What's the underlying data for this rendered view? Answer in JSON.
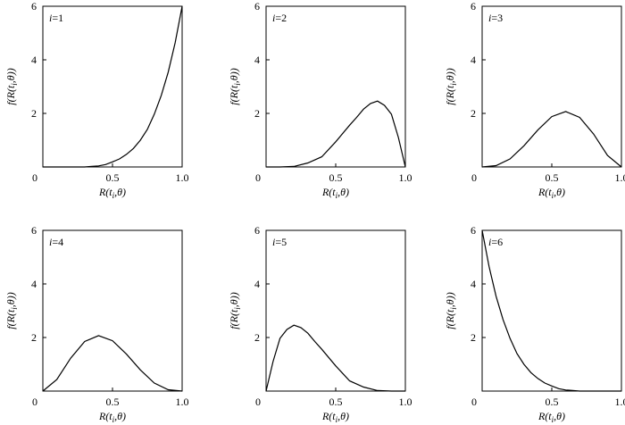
{
  "chart_data": [
    {
      "type": "line",
      "panel_label": "i=1",
      "xlabel": "R(t_i,θ)",
      "ylabel": "f(R(t_i,θ))",
      "xlim": [
        0,
        1
      ],
      "ylim": [
        0,
        6
      ],
      "x_ticks": [
        "0",
        "0.5",
        "1.0"
      ],
      "y_ticks": [
        "2",
        "4",
        "6"
      ],
      "x": [
        0,
        0.1,
        0.2,
        0.3,
        0.35,
        0.4,
        0.45,
        0.5,
        0.55,
        0.6,
        0.65,
        0.7,
        0.75,
        0.8,
        0.85,
        0.9,
        0.95,
        1.0
      ],
      "y": [
        0,
        0,
        0,
        0,
        0.02,
        0.04,
        0.09,
        0.19,
        0.3,
        0.47,
        0.69,
        1.0,
        1.4,
        1.97,
        2.67,
        3.54,
        4.64,
        6.0
      ]
    },
    {
      "type": "line",
      "panel_label": "i=2",
      "xlabel": "R(t_i,θ)",
      "ylabel": "f(R(t_i,θ))",
      "xlim": [
        0,
        1
      ],
      "ylim": [
        0,
        6
      ],
      "x_ticks": [
        "0",
        "0.5",
        "1.0"
      ],
      "y_ticks": [
        "2",
        "4",
        "6"
      ],
      "x": [
        0,
        0.1,
        0.2,
        0.3,
        0.4,
        0.5,
        0.6,
        0.65,
        0.7,
        0.75,
        0.8,
        0.85,
        0.9,
        0.95,
        1.0
      ],
      "y": [
        0,
        0,
        0.02,
        0.15,
        0.38,
        0.94,
        1.56,
        1.85,
        2.16,
        2.37,
        2.46,
        2.3,
        1.97,
        1.1,
        0
      ]
    },
    {
      "type": "line",
      "panel_label": "i=3",
      "xlabel": "R(t_i,θ)",
      "ylabel": "f(R(t_i,θ))",
      "xlim": [
        0,
        1
      ],
      "ylim": [
        0,
        6
      ],
      "x_ticks": [
        "0",
        "0.5",
        "1.0"
      ],
      "y_ticks": [
        "2",
        "4",
        "6"
      ],
      "x": [
        0,
        0.1,
        0.2,
        0.3,
        0.4,
        0.5,
        0.6,
        0.7,
        0.8,
        0.9,
        1.0
      ],
      "y": [
        0,
        0.05,
        0.3,
        0.79,
        1.38,
        1.88,
        2.07,
        1.85,
        1.23,
        0.43,
        0
      ]
    },
    {
      "type": "line",
      "panel_label": "i=4",
      "xlabel": "R(t_i,θ)",
      "ylabel": "f(R(t_i,θ))",
      "xlim": [
        0,
        1
      ],
      "ylim": [
        0,
        6
      ],
      "x_ticks": [
        "0",
        "0.5",
        "1.0"
      ],
      "y_ticks": [
        "2",
        "4",
        "6"
      ],
      "x": [
        0,
        0.1,
        0.2,
        0.3,
        0.4,
        0.5,
        0.6,
        0.7,
        0.8,
        0.9,
        1.0
      ],
      "y": [
        0,
        0.43,
        1.23,
        1.85,
        2.07,
        1.88,
        1.38,
        0.79,
        0.3,
        0.05,
        0
      ]
    },
    {
      "type": "line",
      "panel_label": "i=5",
      "xlabel": "R(t_i,θ)",
      "ylabel": "f(R(t_i,θ))",
      "xlim": [
        0,
        1
      ],
      "ylim": [
        0,
        6
      ],
      "x_ticks": [
        "0",
        "0.5",
        "1.0"
      ],
      "y_ticks": [
        "2",
        "4",
        "6"
      ],
      "x": [
        0,
        0.05,
        0.1,
        0.15,
        0.2,
        0.25,
        0.3,
        0.35,
        0.4,
        0.5,
        0.6,
        0.7,
        0.8,
        0.9,
        1.0
      ],
      "y": [
        0,
        1.1,
        1.97,
        2.3,
        2.46,
        2.37,
        2.16,
        1.85,
        1.56,
        0.94,
        0.38,
        0.15,
        0.02,
        0,
        0
      ]
    },
    {
      "type": "line",
      "panel_label": "i=6",
      "xlabel": "R(t_i,θ)",
      "ylabel": "f(R(t_i,θ))",
      "xlim": [
        0,
        1
      ],
      "ylim": [
        0,
        6
      ],
      "x_ticks": [
        "0",
        "0.5",
        "1.0"
      ],
      "y_ticks": [
        "2",
        "4",
        "6"
      ],
      "x": [
        0,
        0.05,
        0.1,
        0.15,
        0.2,
        0.25,
        0.3,
        0.35,
        0.4,
        0.45,
        0.5,
        0.55,
        0.6,
        0.65,
        0.7,
        0.8,
        0.9,
        1.0
      ],
      "y": [
        6.0,
        4.64,
        3.54,
        2.67,
        1.97,
        1.4,
        1.0,
        0.69,
        0.47,
        0.3,
        0.19,
        0.09,
        0.04,
        0.02,
        0,
        0,
        0,
        0
      ]
    }
  ]
}
